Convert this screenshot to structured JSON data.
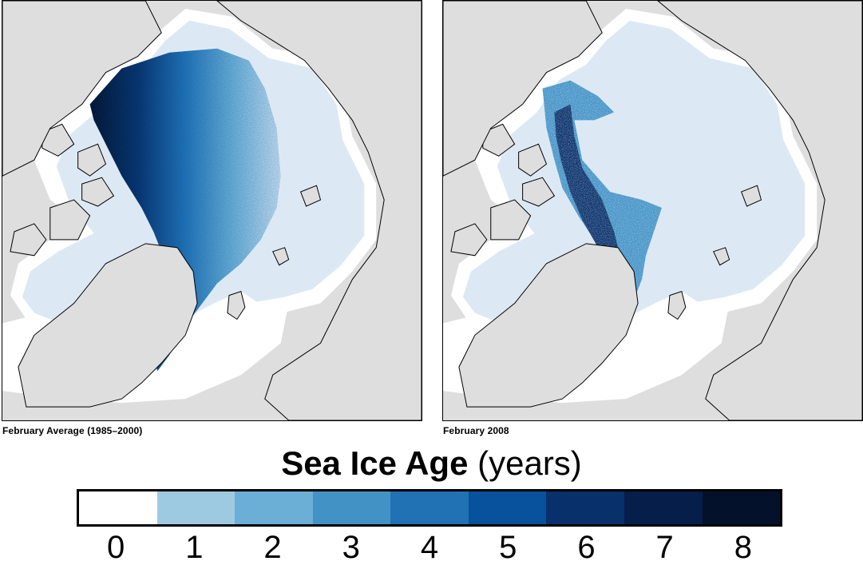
{
  "panels": [
    {
      "caption": "February Average (1985–2000)"
    },
    {
      "caption": "February 2008"
    }
  ],
  "legend": {
    "title_bold": "Sea Ice Age",
    "title_unit": "(years)",
    "ticks": [
      "0",
      "1",
      "2",
      "3",
      "4",
      "5",
      "6",
      "7",
      "8"
    ],
    "colors": [
      "#ffffff",
      "#9ecae1",
      "#6baed6",
      "#4292c6",
      "#2171b5",
      "#08519c",
      "#08306b",
      "#061e4a",
      "#03112b"
    ]
  },
  "map_colors": {
    "land": "#dedede",
    "open_water": "#ffffff",
    "first_year_ice": "#dce9f5",
    "coastline": "#000000"
  }
}
